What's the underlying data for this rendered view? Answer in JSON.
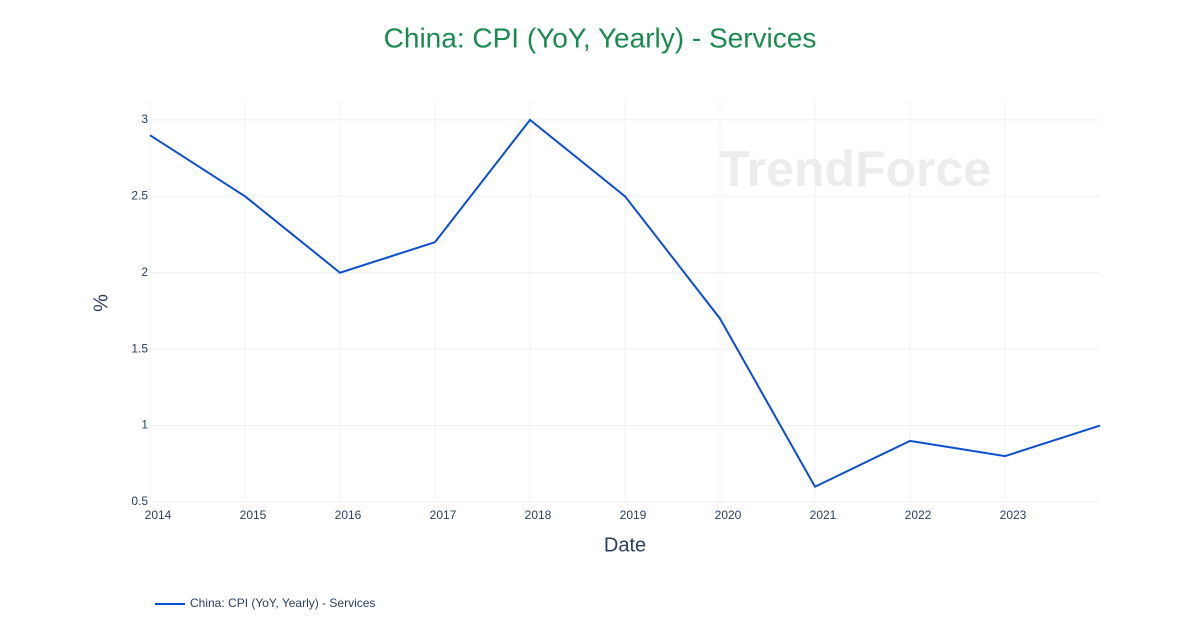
{
  "chart_data": {
    "type": "line",
    "title": "China: CPI (YoY, Yearly) - Services",
    "x_label": "Date",
    "y_label": "%",
    "watermark": "TrendForce",
    "x": [
      2014,
      2015,
      2016,
      2017,
      2018,
      2019,
      2020,
      2021,
      2022,
      2023,
      2024
    ],
    "series": [
      {
        "name": "China: CPI (YoY, Yearly) - Services",
        "color": "#0b4fd1",
        "values": [
          2.9,
          2.5,
          2.0,
          2.2,
          3.0,
          2.5,
          1.7,
          0.6,
          0.9,
          0.8,
          1.0
        ]
      }
    ],
    "xlim": [
      2014,
      2024
    ],
    "xticks": [
      2014,
      2015,
      2016,
      2017,
      2018,
      2019,
      2020,
      2021,
      2022,
      2023
    ],
    "ylim": [
      0.5,
      3.13
    ],
    "yticks": [
      0.5,
      1,
      1.5,
      2,
      2.5,
      3
    ],
    "grid": true,
    "legend": "bottom-left"
  }
}
